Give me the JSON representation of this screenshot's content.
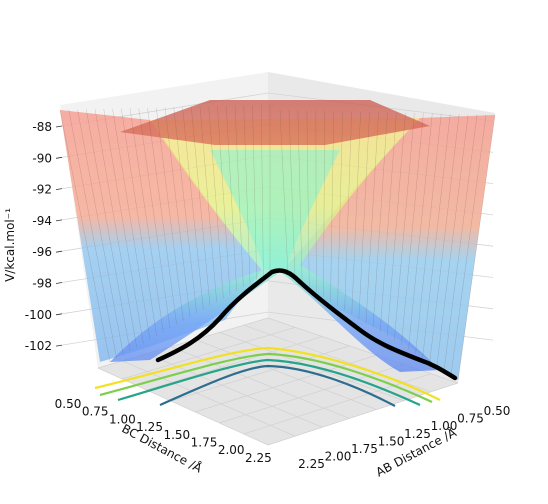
{
  "chart_data": {
    "type": "surface-3d",
    "title": "",
    "zlabel": "V/kcal.mol⁻¹",
    "xlabel": "AB Distance /Å",
    "ylabel": "BC Distance /Å",
    "z_ticks": [
      "-88",
      "-90",
      "-92",
      "-94",
      "-96",
      "-98",
      "-100",
      "-102"
    ],
    "x_ticks": [
      "0.50",
      "0.75",
      "1.00",
      "1.25",
      "1.50",
      "1.75",
      "2.00",
      "2.25"
    ],
    "y_ticks": [
      "0.50",
      "0.75",
      "1.00",
      "1.25",
      "1.50",
      "1.75",
      "2.00",
      "2.25"
    ],
    "zlim": [
      -103.5,
      -87.5
    ],
    "grid": true,
    "colormap": "jet (blue→cyan→yellow→orange→red)",
    "trajectory_color": "#000000",
    "contour_colors": [
      "#2d6e8e",
      "#26a48a",
      "#7ccf4c",
      "#f2e11f"
    ],
    "trajectory": {
      "description": "reaction path on the potential energy surface",
      "z_start": -102.5,
      "z_peak": -97.5,
      "z_end": -101.8
    }
  }
}
